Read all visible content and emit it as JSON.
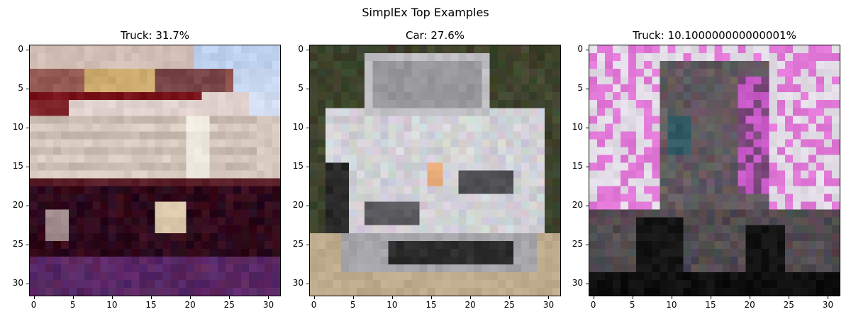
{
  "figure": {
    "suptitle": "SimplEx Top Examples"
  },
  "panels": [
    {
      "title": "Truck: 31.7%",
      "scene": "truck-dump",
      "xticks": [
        "0",
        "5",
        "10",
        "15",
        "20",
        "25",
        "30"
      ],
      "yticks": [
        "0",
        "5",
        "10",
        "15",
        "20",
        "25",
        "30"
      ]
    },
    {
      "title": "Car: 27.6%",
      "scene": "car-silver",
      "xticks": [
        "0",
        "5",
        "10",
        "15",
        "20",
        "25",
        "30"
      ],
      "yticks": [
        "0",
        "5",
        "10",
        "15",
        "20",
        "25",
        "30"
      ]
    },
    {
      "title": "Truck: 10.100000000000001%",
      "scene": "truck-pink",
      "xticks": [
        "0",
        "5",
        "10",
        "15",
        "20",
        "25",
        "30"
      ],
      "yticks": [
        "0",
        "5",
        "10",
        "15",
        "20",
        "25",
        "30"
      ]
    }
  ],
  "image_grid": {
    "width": 32,
    "height": 32
  }
}
